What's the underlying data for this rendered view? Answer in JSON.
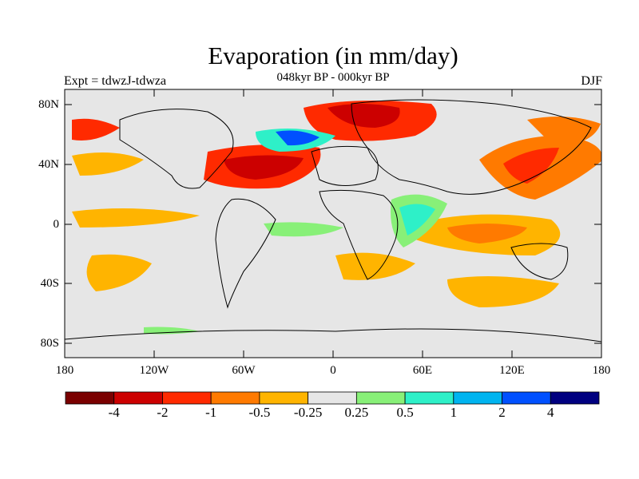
{
  "title": "Evaporation (in mm/day)",
  "subtitle": "048kyr BP - 000kyr BP",
  "left_label": "Expt = tdwzJ-tdwza",
  "right_label": "DJF",
  "lat_ticks": [
    "80N",
    "40N",
    "0",
    "40S",
    "80S"
  ],
  "lon_ticks": [
    "180",
    "120W",
    "60W",
    "0",
    "60E",
    "120E",
    "180"
  ],
  "colorbar": {
    "colors": [
      "#7a0000",
      "#cc0000",
      "#ff2a00",
      "#ff7a00",
      "#ffb400",
      "#e6e6e6",
      "#88f078",
      "#2ef0c8",
      "#00b4f0",
      "#0050ff",
      "#000080"
    ],
    "labels": [
      "-4",
      "-2",
      "-1",
      "-0.5",
      "-0.25",
      "0.25",
      "0.5",
      "1",
      "2",
      "4"
    ]
  }
}
